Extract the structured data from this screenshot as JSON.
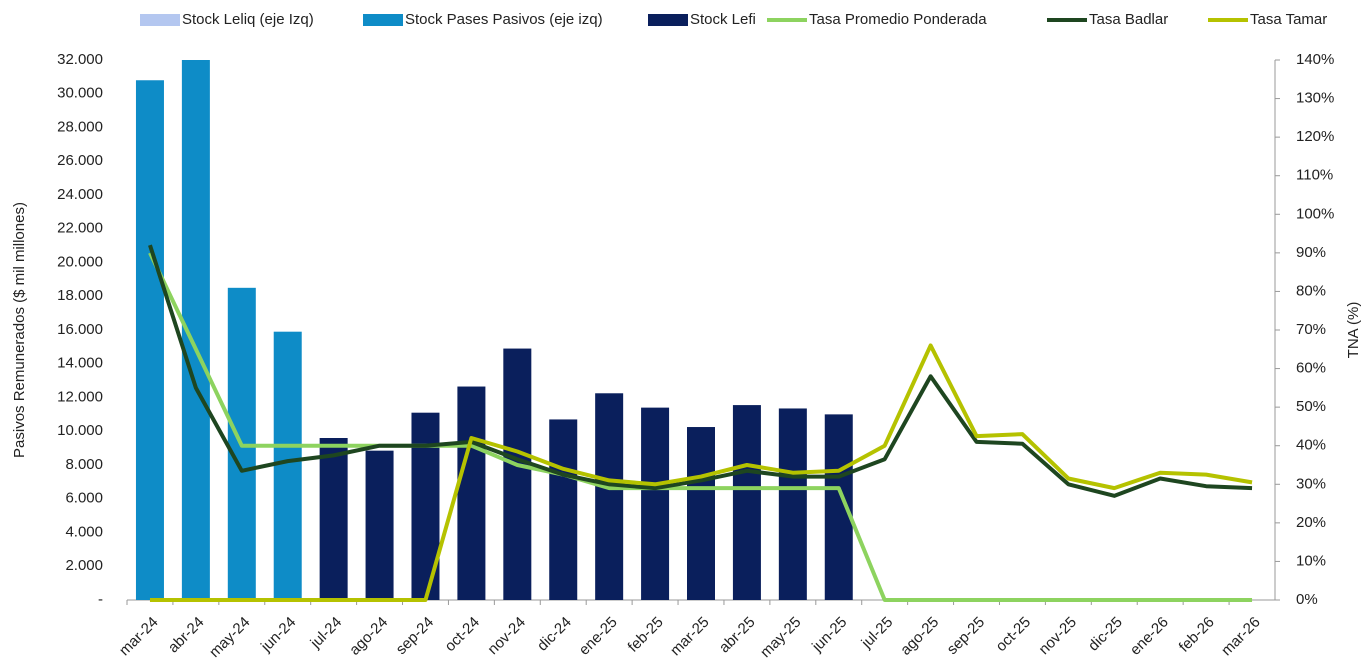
{
  "chart_data": {
    "type": "bar",
    "y_label": "Pasivos Remunerados  ($ mil millones)",
    "y2_label": "TNA (%)",
    "categories": [
      "mar-24",
      "abr-24",
      "may-24",
      "jun-24",
      "jul-24",
      "ago-24",
      "sep-24",
      "oct-24",
      "nov-24",
      "dic-24",
      "ene-25",
      "feb-25",
      "mar-25",
      "abr-25",
      "may-25",
      "jun-25",
      "jul-25",
      "ago-25",
      "sep-25",
      "oct-25",
      "nov-25",
      "dic-25",
      "ene-26",
      "feb-26",
      "mar-26"
    ],
    "ylim": [
      0,
      32000
    ],
    "yticks": [
      {
        "value": 0,
        "label": "-"
      },
      {
        "value": 2000,
        "label": "2.000"
      },
      {
        "value": 4000,
        "label": "4.000"
      },
      {
        "value": 6000,
        "label": "6.000"
      },
      {
        "value": 8000,
        "label": "8.000"
      },
      {
        "value": 10000,
        "label": "10.000"
      },
      {
        "value": 12000,
        "label": "12.000"
      },
      {
        "value": 14000,
        "label": "14.000"
      },
      {
        "value": 16000,
        "label": "16.000"
      },
      {
        "value": 18000,
        "label": "18.000"
      },
      {
        "value": 20000,
        "label": "20.000"
      },
      {
        "value": 22000,
        "label": "22.000"
      },
      {
        "value": 24000,
        "label": "24.000"
      },
      {
        "value": 26000,
        "label": "26.000"
      },
      {
        "value": 28000,
        "label": "28.000"
      },
      {
        "value": 30000,
        "label": "30.000"
      },
      {
        "value": 32000,
        "label": "32.000"
      }
    ],
    "y2lim": [
      0,
      140
    ],
    "y2ticks": [
      {
        "value": 0,
        "label": "0%"
      },
      {
        "value": 10,
        "label": "10%"
      },
      {
        "value": 20,
        "label": "20%"
      },
      {
        "value": 30,
        "label": "30%"
      },
      {
        "value": 40,
        "label": "40%"
      },
      {
        "value": 50,
        "label": "50%"
      },
      {
        "value": 60,
        "label": "60%"
      },
      {
        "value": 70,
        "label": "70%"
      },
      {
        "value": 80,
        "label": "80%"
      },
      {
        "value": 90,
        "label": "90%"
      },
      {
        "value": 100,
        "label": "100%"
      },
      {
        "value": 110,
        "label": "110%"
      },
      {
        "value": 120,
        "label": "120%"
      },
      {
        "value": 130,
        "label": "130%"
      },
      {
        "value": 140,
        "label": "140%"
      }
    ],
    "series": [
      {
        "name": "Stock Leliq (eje Izq)",
        "type": "bar",
        "color": "#b4c7f0",
        "values": [
          null,
          null,
          null,
          null,
          null,
          null,
          null,
          null,
          null,
          null,
          null,
          null,
          null,
          null,
          null,
          null,
          null,
          null,
          null,
          null,
          null,
          null,
          null,
          null,
          null
        ]
      },
      {
        "name": "Stock Pases Pasivos (eje izq)",
        "type": "bar",
        "color": "#0e8cc7",
        "values": [
          30800,
          32000,
          18500,
          15900,
          null,
          null,
          null,
          null,
          null,
          null,
          null,
          null,
          null,
          null,
          null,
          null,
          null,
          null,
          null,
          null,
          null,
          null,
          null,
          null,
          null
        ]
      },
      {
        "name": "Stock Lefi",
        "type": "bar",
        "color": "#0a1f5c",
        "values": [
          null,
          null,
          null,
          null,
          9600,
          8850,
          11100,
          12650,
          14900,
          10700,
          12250,
          11400,
          10250,
          11550,
          11350,
          11000,
          null,
          null,
          null,
          null,
          null,
          null,
          null,
          null,
          null
        ]
      },
      {
        "name": "Tasa Promedio Ponderada",
        "type": "line",
        "axis": "y2",
        "color": "#8dd35f",
        "values": [
          90,
          65,
          40,
          40,
          40,
          40,
          40,
          40,
          35,
          32.5,
          29,
          29,
          29,
          29,
          29,
          29,
          0,
          0,
          0,
          0,
          0,
          0,
          0,
          0,
          0
        ]
      },
      {
        "name": "Tasa Badlar",
        "type": "line",
        "axis": "y2",
        "color": "#1e4620",
        "values": [
          92,
          55,
          33.5,
          36,
          37.5,
          40,
          40,
          41,
          36.5,
          32.5,
          30,
          29,
          31,
          33.5,
          32,
          32,
          36.5,
          58,
          41,
          40.5,
          30,
          27,
          31.5,
          29.5,
          29
        ]
      },
      {
        "name": "Tasa Tamar",
        "type": "line",
        "axis": "y2",
        "color": "#b5c200",
        "values": [
          0,
          0,
          0,
          0,
          0,
          0,
          0,
          42,
          38.5,
          34,
          31,
          30,
          32,
          35,
          33,
          33.5,
          40,
          66,
          42.5,
          43,
          31.5,
          29,
          33,
          32.5,
          30.5
        ]
      }
    ]
  }
}
